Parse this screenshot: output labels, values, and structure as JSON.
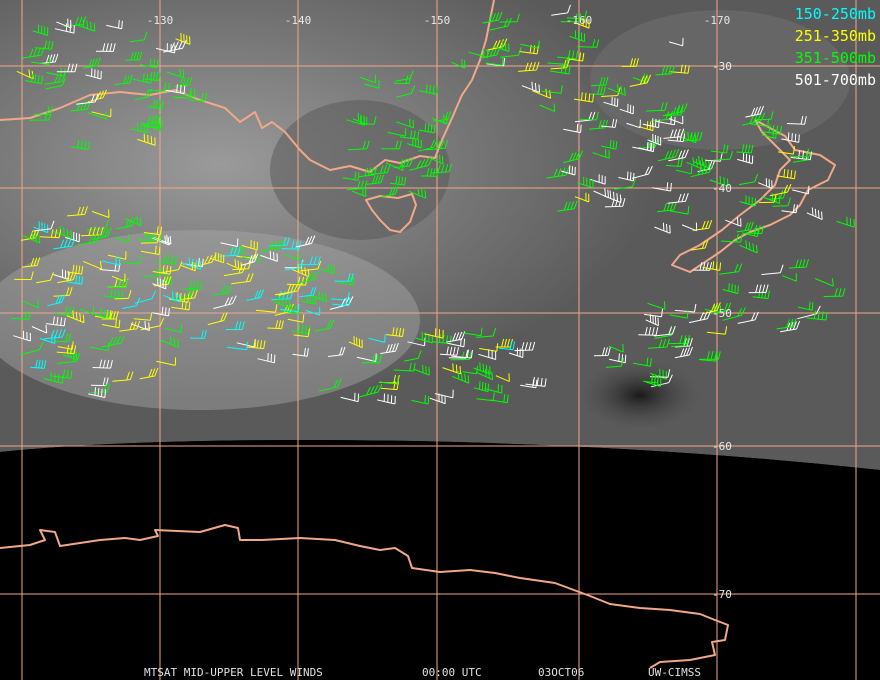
{
  "map": {
    "lon_labels": [
      "-130",
      "-140",
      "-150",
      "-160",
      "-170"
    ],
    "lat_labels": [
      "-30",
      "-40",
      "-50",
      "-60",
      "-70"
    ],
    "legend": [
      {
        "label": "150-250mb",
        "color": "#00ffff"
      },
      {
        "label": "251-350mb",
        "color": "#ffff00"
      },
      {
        "label": "351-500mb",
        "color": "#00ff00"
      },
      {
        "label": "501-700mb",
        "color": "#ffffff"
      }
    ],
    "footer": {
      "product": "MTSAT MID-UPPER LEVEL WINDS",
      "time": "00:00 UTC",
      "date": "03OCT06",
      "source": "UW-CIMSS"
    }
  }
}
